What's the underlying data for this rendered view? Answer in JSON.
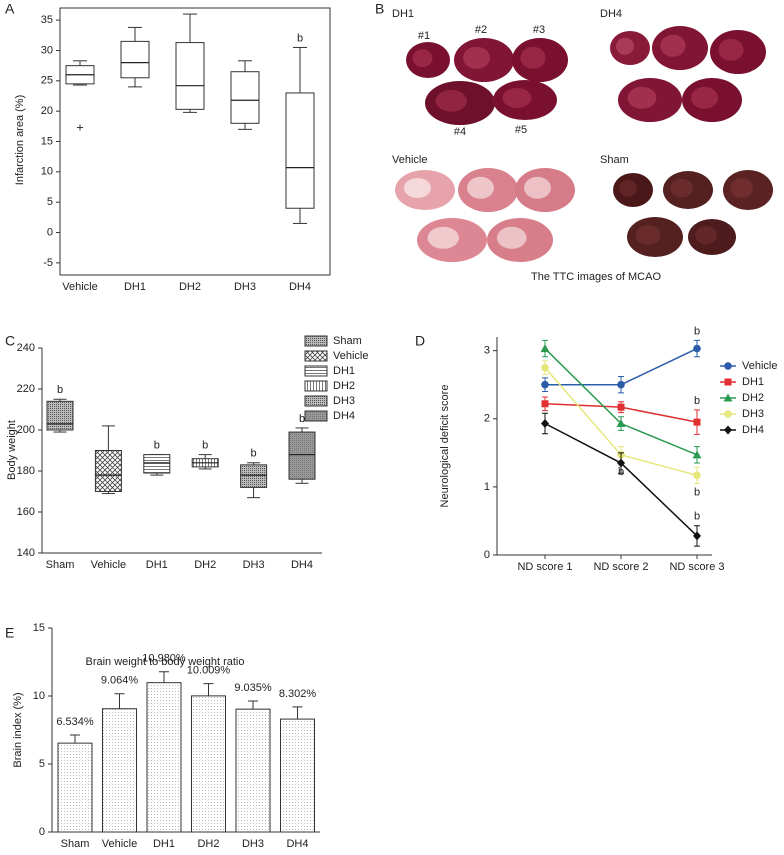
{
  "chart_data": [
    {
      "panel": "A",
      "type": "box",
      "y_label": "Infarction area (%)",
      "categories": [
        "Vehicle",
        "DH1",
        "DH2",
        "DH3",
        "DH4"
      ],
      "min": [
        24.3,
        24,
        19.8,
        17,
        1.5
      ],
      "q1": [
        24.5,
        25.5,
        20.3,
        18,
        4
      ],
      "median": [
        26,
        28,
        24.2,
        21.8,
        10.7
      ],
      "q3": [
        27.5,
        31.5,
        31.3,
        26.5,
        23
      ],
      "max": [
        28.3,
        33.8,
        36,
        28.3,
        30.5
      ],
      "outliers": [
        [
          17.3
        ],
        [],
        [],
        [],
        []
      ],
      "ylim": [
        -7,
        37
      ],
      "yticks": [
        -5,
        0,
        5,
        10,
        15,
        20,
        25,
        30,
        35
      ],
      "frame": true,
      "patterns": [
        "none",
        "none",
        "none",
        "none",
        "none"
      ],
      "annotations": [
        {
          "text": "b",
          "category": "DH4"
        }
      ]
    },
    {
      "panel": "C",
      "type": "box",
      "y_label": "Body weight",
      "categories": [
        "Sham",
        "Vehicle",
        "DH1",
        "DH2",
        "DH3",
        "DH4"
      ],
      "min": [
        199,
        169,
        178,
        181,
        167,
        174
      ],
      "q1": [
        200,
        170,
        179,
        182,
        172,
        176
      ],
      "median": [
        203,
        178,
        184,
        184,
        178,
        188
      ],
      "q3": [
        214,
        190,
        188,
        186,
        183,
        199
      ],
      "max": [
        215,
        202,
        188,
        188,
        184,
        201
      ],
      "outliers": [
        [],
        [],
        [],
        [],
        [],
        []
      ],
      "ylim": [
        140,
        240
      ],
      "yticks": [
        140,
        160,
        180,
        200,
        220,
        240
      ],
      "frame": false,
      "patterns": [
        "dense",
        "cross",
        "horizontal",
        "vertical",
        "dense",
        "grey"
      ],
      "legend": "top-right",
      "annotations": [
        {
          "text": "b",
          "category": "Sham"
        },
        {
          "text": "b",
          "category": "DH1"
        },
        {
          "text": "b",
          "category": "DH2"
        },
        {
          "text": "b",
          "category": "DH3"
        },
        {
          "text": "b",
          "category": "DH4"
        }
      ]
    },
    {
      "panel": "D",
      "type": "line",
      "y_label": "Neurological deficit score",
      "categories": [
        "ND score 1",
        "ND score 2",
        "ND score 3"
      ],
      "series": [
        {
          "name": "Vehicle",
          "color": "#2a5caa",
          "marker": "circle",
          "values": [
            2.5,
            2.5,
            3.03
          ],
          "errors": [
            0.1,
            0.12,
            0.12
          ]
        },
        {
          "name": "DH1",
          "color": "#e03030",
          "marker": "square",
          "values": [
            2.22,
            2.17,
            1.95
          ],
          "errors": [
            0.1,
            0.08,
            0.18
          ]
        },
        {
          "name": "DH2",
          "color": "#2a9a50",
          "marker": "triangle",
          "values": [
            3.03,
            1.93,
            1.47
          ],
          "errors": [
            0.12,
            0.1,
            0.12
          ]
        },
        {
          "name": "DH3",
          "color": "#e6e67a",
          "marker": "circle",
          "values": [
            2.75,
            1.47,
            1.17
          ],
          "errors": [
            0.1,
            0.12,
            0.12
          ]
        },
        {
          "name": "DH4",
          "color": "#111111",
          "marker": "diamond",
          "values": [
            1.93,
            1.35,
            0.28
          ],
          "errors": [
            0.15,
            0.15,
            0.15
          ]
        }
      ],
      "ylim": [
        0,
        3.2
      ],
      "yticks": [
        0,
        1,
        2,
        3
      ],
      "legend": "right",
      "annotations": [
        {
          "text": "b",
          "series": "DH3",
          "category": "ND score 2",
          "position": "below"
        },
        {
          "text": "b",
          "series": "Vehicle",
          "category": "ND score 3",
          "position": "above"
        },
        {
          "text": "b",
          "series": "DH1",
          "category": "ND score 3",
          "position": "above"
        },
        {
          "text": "b",
          "series": "DH3",
          "category": "ND score 3",
          "position": "below"
        },
        {
          "text": "b",
          "series": "DH4",
          "category": "ND score 3",
          "position": "above"
        }
      ]
    },
    {
      "panel": "E",
      "type": "bar",
      "title": "Brain weight to body weight ratio",
      "y_label": "Brain index (%)",
      "categories": [
        "Sham",
        "Vehicle",
        "DH1",
        "DH2",
        "DH3",
        "DH4"
      ],
      "values": [
        6.534,
        9.064,
        10.98,
        10.009,
        9.035,
        8.302
      ],
      "value_labels": [
        "6.534%",
        "9.064%",
        "10.980%",
        "10.009%",
        "9.035%",
        "8.302%"
      ],
      "errors": [
        0.6,
        1.1,
        0.8,
        0.9,
        0.6,
        0.9
      ],
      "ylim": [
        0,
        15
      ],
      "yticks": [
        0,
        5,
        10,
        15
      ],
      "pattern": "dots"
    }
  ],
  "images": {
    "panel": "B",
    "caption": "The TTC images of MCAO",
    "groups": [
      {
        "label": "DH1",
        "slice_labels": [
          "#1",
          "#2",
          "#3",
          "#4",
          "#5"
        ]
      },
      {
        "label": "DH4"
      },
      {
        "label": "Vehicle"
      },
      {
        "label": "Sham"
      }
    ]
  }
}
